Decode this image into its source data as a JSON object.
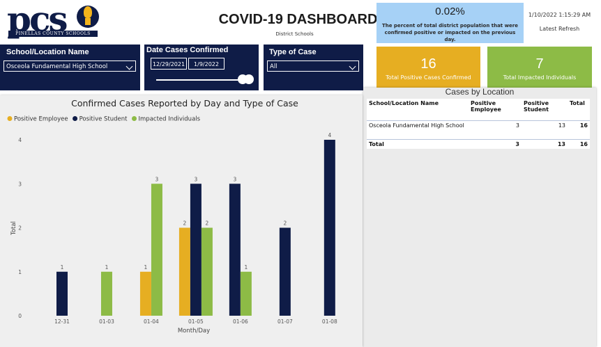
{
  "header": {
    "logo_text": "pcs",
    "logo_subtext": "PINELLAS COUNTY SCHOOLS",
    "title": "COVID-19 DASHBOARD",
    "subtitle": "District Schools"
  },
  "percent_card": {
    "value": "0.02%",
    "description": "The percent of total district population that were confirmed positive or impacted on the previous day."
  },
  "refresh": {
    "timestamp": "1/10/2022 1:15:29 AM",
    "label": "Latest Refresh"
  },
  "filters": {
    "school": {
      "label": "School/Location Name",
      "value": "Osceola Fundamental High School"
    },
    "dates": {
      "label": "Date Cases Confirmed",
      "start": "12/29/2021",
      "end": "1/9/2022"
    },
    "case_type": {
      "label": "Type of Case",
      "value": "All"
    }
  },
  "kpis": {
    "positive": {
      "value": "16",
      "label": "Total Positive Cases Confirmed",
      "color": "#e6ae22"
    },
    "impacted": {
      "value": "7",
      "label": "Total Impacted Individuals",
      "color": "#8dbb46"
    }
  },
  "location_table": {
    "title": "Cases by Location",
    "headers": [
      "School/Location Name",
      "Positive Employee",
      "Positive Student",
      "Total"
    ],
    "rows": [
      [
        "Osceola Fundamental High School",
        "3",
        "13",
        "16"
      ]
    ],
    "total_row": [
      "Total",
      "3",
      "13",
      "16"
    ]
  },
  "chart_data": {
    "type": "bar",
    "title": "Confirmed Cases Reported by Day and Type of Case",
    "xlabel": "Month/Day",
    "ylabel": "Total",
    "ylim": [
      0,
      4
    ],
    "yticks": [
      "0",
      "1",
      "2",
      "3",
      "4"
    ],
    "legend_position": "top-left",
    "categories": [
      "12-31",
      "01-03",
      "01-04",
      "01-05",
      "01-06",
      "01-07",
      "01-08"
    ],
    "series": [
      {
        "name": "Positive Employee",
        "color": "#e6ae22",
        "values": [
          null,
          null,
          1,
          2,
          null,
          null,
          null
        ]
      },
      {
        "name": "Positive Student",
        "color": "#0f1c47",
        "values": [
          1,
          null,
          null,
          3,
          3,
          2,
          4
        ]
      },
      {
        "name": "Impacted Individuals",
        "color": "#8dbb46",
        "values": [
          null,
          1,
          3,
          2,
          1,
          null,
          null
        ]
      }
    ]
  }
}
